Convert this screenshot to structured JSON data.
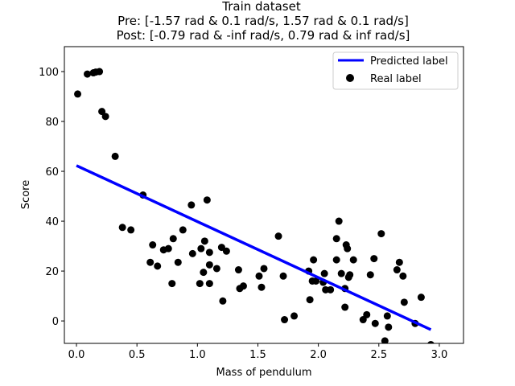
{
  "chart_data": {
    "type": "scatter",
    "title_lines": [
      "Train dataset",
      "Pre: [-1.57 rad & 0.1 rad/s, 1.57 rad & 0.1 rad/s]",
      "Post: [-0.79 rad & -inf rad/s, 0.79 rad & inf rad/s]"
    ],
    "xlabel": "Mass of pendulum",
    "ylabel": "Score",
    "xlim": [
      -0.1,
      3.2
    ],
    "ylim": [
      -9,
      110
    ],
    "xticks": [
      0.0,
      0.5,
      1.0,
      1.5,
      2.0,
      2.5,
      3.0
    ],
    "xtick_labels": [
      "0.0",
      "0.5",
      "1.0",
      "1.5",
      "2.0",
      "2.5",
      "3.0"
    ],
    "yticks": [
      0,
      20,
      40,
      60,
      80,
      100
    ],
    "ytick_labels": [
      "0",
      "20",
      "40",
      "60",
      "80",
      "100"
    ],
    "grid": false,
    "legend_position": "top-right",
    "series": [
      {
        "name": "Predicted label",
        "kind": "line",
        "color": "#0000ff",
        "points": [
          [
            0.0,
            62.3
          ],
          [
            2.93,
            -3.5
          ]
        ]
      },
      {
        "name": "Real label",
        "kind": "scatter",
        "color": "#000000",
        "points": [
          [
            0.01,
            91
          ],
          [
            0.09,
            99
          ],
          [
            0.14,
            99.5
          ],
          [
            0.16,
            99.8
          ],
          [
            0.19,
            100
          ],
          [
            0.21,
            84
          ],
          [
            0.24,
            82
          ],
          [
            0.32,
            66
          ],
          [
            0.38,
            37.5
          ],
          [
            0.45,
            36.5
          ],
          [
            0.55,
            50.5
          ],
          [
            0.61,
            23.5
          ],
          [
            0.63,
            30.5
          ],
          [
            0.67,
            22
          ],
          [
            0.72,
            28.5
          ],
          [
            0.76,
            29
          ],
          [
            0.79,
            15
          ],
          [
            0.8,
            33
          ],
          [
            0.84,
            23.5
          ],
          [
            0.88,
            36.5
          ],
          [
            0.95,
            46.5
          ],
          [
            0.96,
            27
          ],
          [
            1.02,
            15
          ],
          [
            1.03,
            29
          ],
          [
            1.05,
            19.5
          ],
          [
            1.06,
            32
          ],
          [
            1.08,
            48.5
          ],
          [
            1.1,
            27.5
          ],
          [
            1.1,
            15
          ],
          [
            1.1,
            22.5
          ],
          [
            1.16,
            21
          ],
          [
            1.2,
            29.5
          ],
          [
            1.21,
            8
          ],
          [
            1.24,
            28
          ],
          [
            1.34,
            20.5
          ],
          [
            1.35,
            13
          ],
          [
            1.38,
            14
          ],
          [
            1.51,
            18
          ],
          [
            1.53,
            13.5
          ],
          [
            1.55,
            21
          ],
          [
            1.67,
            34
          ],
          [
            1.71,
            18
          ],
          [
            1.72,
            0.5
          ],
          [
            1.8,
            2
          ],
          [
            1.92,
            20
          ],
          [
            1.93,
            8.5
          ],
          [
            1.95,
            16
          ],
          [
            1.96,
            24.5
          ],
          [
            1.98,
            16
          ],
          [
            2.04,
            15.5
          ],
          [
            2.05,
            19
          ],
          [
            2.06,
            12.5
          ],
          [
            2.1,
            12.5
          ],
          [
            2.15,
            24.5
          ],
          [
            2.15,
            33
          ],
          [
            2.17,
            40
          ],
          [
            2.19,
            19
          ],
          [
            2.22,
            13
          ],
          [
            2.22,
            5.5
          ],
          [
            2.23,
            30.5
          ],
          [
            2.24,
            29
          ],
          [
            2.25,
            17.5
          ],
          [
            2.26,
            18.5
          ],
          [
            2.29,
            24.5
          ],
          [
            2.37,
            0.5
          ],
          [
            2.4,
            2.5
          ],
          [
            2.43,
            18.5
          ],
          [
            2.46,
            25
          ],
          [
            2.47,
            -1
          ],
          [
            2.52,
            35
          ],
          [
            2.55,
            -8
          ],
          [
            2.57,
            2
          ],
          [
            2.58,
            -2.5
          ],
          [
            2.65,
            20.5
          ],
          [
            2.67,
            23.5
          ],
          [
            2.7,
            18
          ],
          [
            2.71,
            7.5
          ],
          [
            2.8,
            -1
          ],
          [
            2.85,
            9.5
          ],
          [
            2.93,
            -9.5
          ]
        ]
      }
    ]
  }
}
